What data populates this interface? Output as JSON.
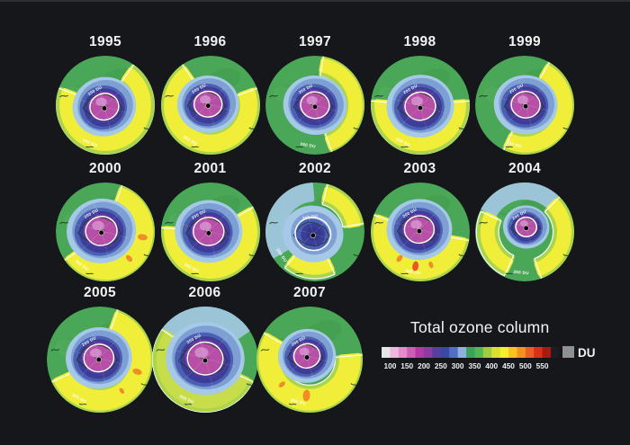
{
  "figure": {
    "background": "#15171a"
  },
  "legend": {
    "title": "Total ozone column",
    "unit": "DU",
    "ticks": [
      "100",
      "150",
      "200",
      "250",
      "300",
      "350",
      "400",
      "450",
      "500",
      "550"
    ],
    "segments": [
      "#e8e5ea",
      "#ecb8dc",
      "#de8fca",
      "#cb5fb6",
      "#b33aa0",
      "#8e3aa0",
      "#553ea4",
      "#3c47a6",
      "#5270c0",
      "#8fafdc",
      "#3da05c",
      "#58b54f",
      "#a2cc3e",
      "#d8e032",
      "#f4ee2c",
      "#f6c322",
      "#f4921f",
      "#e95f23",
      "#da2f1e",
      "#a81b15"
    ],
    "overflow_color": "#1b1d20",
    "missing_color": "#8e9092"
  },
  "chart_data": {
    "type": "heatmap",
    "title": "Total ozone column",
    "unit": "DU",
    "legend_position": "bottom-right",
    "colorbar": {
      "range": [
        75,
        575
      ],
      "segment_du": 25,
      "tick_values": [
        100,
        150,
        200,
        250,
        300,
        350,
        400,
        450,
        500,
        550
      ]
    },
    "categories": [
      "1995",
      "1996",
      "1997",
      "1998",
      "1999",
      "2000",
      "2001",
      "2002",
      "2003",
      "2004",
      "2005",
      "2006",
      "2007"
    ],
    "palette": {
      "disc": "#4aa757",
      "disc_dark": "#419b4e",
      "disc_light": "#58b45f",
      "fringe": "#abd54d",
      "yellow": "#f1ee39",
      "orange": "#ef8e28",
      "red_orange": "#e8562a",
      "pale_blue": "#a5c9e6",
      "light_blue": "#7e9fd3",
      "blue": "#4c5fb2",
      "navy": "#3a3e96",
      "indigo": "#4d3a9c",
      "purple": "#7c3da3",
      "magenta": "#b84fa7",
      "pink": "#d18cc9",
      "contour": "#ffffff",
      "coast": "#173822",
      "text": "#f2f2f2"
    },
    "maps": [
      {
        "year": "1995",
        "row": 0,
        "col": 0,
        "hole": {
          "type": "magenta",
          "size": 0.33,
          "dx": -0.02,
          "dy": 0.03
        },
        "bands": [
          {
            "a0": -55,
            "a1": 200,
            "ro": 0.88,
            "ri": 0.66
          }
        ],
        "spots": [],
        "pale": null,
        "labels": {
          "inner": "200 DU",
          "inner_angle": -120,
          "outer": "350 DU",
          "outer_angle": 112
        }
      },
      {
        "year": "1996",
        "row": 0,
        "col": 1,
        "hole": {
          "type": "magenta",
          "size": 0.32,
          "dx": -0.05,
          "dy": -0.02
        },
        "bands": [
          {
            "a0": -20,
            "a1": 235,
            "ro": 0.9,
            "ri": 0.64
          }
        ],
        "spots": [],
        "pale": null,
        "labels": {
          "inner": "200 DU",
          "inner_angle": -120,
          "outer": "350 DU",
          "outer_angle": 120
        }
      },
      {
        "year": "1997",
        "row": 0,
        "col": 2,
        "hole": {
          "type": "magenta",
          "size": 0.33,
          "dx": 0,
          "dy": 0
        },
        "bands": [
          {
            "a0": -80,
            "a1": 70,
            "ro": 0.92,
            "ri": 0.72
          }
        ],
        "spots": [],
        "pale": null,
        "labels": {
          "inner": "200 DU",
          "inner_angle": -120,
          "outer": "350 DU",
          "outer_angle": 100
        }
      },
      {
        "year": "1998",
        "row": 0,
        "col": 3,
        "hole": {
          "type": "magenta",
          "size": 0.35,
          "dx": 0,
          "dy": 0.02
        },
        "bands": [
          {
            "a0": -5,
            "a1": 185,
            "ro": 0.88,
            "ri": 0.66
          }
        ],
        "spots": [],
        "pale": null,
        "labels": {
          "inner": "200 DU",
          "inner_angle": -120,
          "outer": "350 DU",
          "outer_angle": 115
        }
      },
      {
        "year": "1999",
        "row": 0,
        "col": 4,
        "hole": {
          "type": "magenta",
          "size": 0.33,
          "dx": 0.02,
          "dy": -0.01
        },
        "bands": [
          {
            "a0": -60,
            "a1": 115,
            "ro": 0.9,
            "ri": 0.68
          }
        ],
        "spots": [],
        "pale": null,
        "labels": {
          "inner": "200 DU",
          "inner_angle": -120,
          "outer": "350 DU",
          "outer_angle": 105
        }
      },
      {
        "year": "2000",
        "row": 1,
        "col": 0,
        "hole": {
          "type": "magenta",
          "size": 0.36,
          "dx": -0.08,
          "dy": -0.02
        },
        "bands": [
          {
            "a0": -70,
            "a1": 145,
            "ro": 0.92,
            "ri": 0.62
          }
        ],
        "spots": [
          {
            "a": 8,
            "d": 0.76,
            "r": 0.1
          },
          {
            "a": 48,
            "d": 0.72,
            "r": 0.08
          }
        ],
        "pale": null,
        "labels": {
          "inner": "200 DU",
          "inner_angle": -120,
          "outer": "350 DU",
          "outer_angle": 125
        }
      },
      {
        "year": "2001",
        "row": 1,
        "col": 1,
        "hole": {
          "type": "magenta",
          "size": 0.35,
          "dx": -0.04,
          "dy": -0.01
        },
        "bands": [
          {
            "a0": -30,
            "a1": 185,
            "ro": 0.9,
            "ri": 0.64
          }
        ],
        "spots": [],
        "pale": null,
        "labels": {
          "inner": "200 DU",
          "inner_angle": -120,
          "outer": "350 DU",
          "outer_angle": 118
        }
      },
      {
        "year": "2002",
        "row": 1,
        "col": 2,
        "hole": {
          "type": "blue",
          "size": 0.3,
          "dx": -0.04,
          "dy": 0.04
        },
        "bands": [
          {
            "a0": -75,
            "a1": -10,
            "ro": 0.9,
            "ri": 0.7
          },
          {
            "a0": 65,
            "a1": 130,
            "ro": 0.82,
            "ri": 0.6
          }
        ],
        "spots": [],
        "pale": {
          "a0": 150,
          "a1": 265,
          "ro": 0.98,
          "ri": 0.66
        },
        "labels": {
          "inner": "300 DU",
          "inner_angle": -100,
          "outer": "350 DU",
          "outer_angle": 145
        }
      },
      {
        "year": "2003",
        "row": 1,
        "col": 3,
        "hole": {
          "type": "magenta",
          "size": 0.34,
          "dx": -0.02,
          "dy": -0.05
        },
        "bands": [
          {
            "a0": 10,
            "a1": 200,
            "ro": 0.9,
            "ri": 0.6
          }
        ],
        "spots": [
          {
            "a": 72,
            "d": 0.7,
            "r": 0.07,
            "color": "#ef8e28"
          },
          {
            "a": 98,
            "d": 0.7,
            "r": 0.1,
            "color": "#e8562a"
          },
          {
            "a": 128,
            "d": 0.68,
            "r": 0.08,
            "color": "#ef8e28"
          }
        ],
        "pale": null,
        "labels": {
          "inner": "200 DU",
          "inner_angle": -120,
          "outer": "300 DU",
          "outer_angle": 100
        }
      },
      {
        "year": "2004",
        "row": 1,
        "col": 4,
        "hole": {
          "type": "magenta",
          "size": 0.24,
          "dx": 0.03,
          "dy": -0.1
        },
        "bands": [
          {
            "a0": -45,
            "a1": 70,
            "ro": 0.9,
            "ri": 0.7
          },
          {
            "a0": 115,
            "a1": 205,
            "ro": 0.85,
            "ri": 0.65
          }
        ],
        "spots": [],
        "pale": {
          "a0": -150,
          "a1": -25,
          "ro": 0.98,
          "ri": 0.7
        },
        "labels": {
          "inner": "200 DU",
          "inner_angle": -120,
          "outer": "350 DU",
          "outer_angle": 95
        }
      },
      {
        "year": "2005",
        "row": 2,
        "col": 0,
        "hole": {
          "type": "magenta",
          "size": 0.32,
          "dx": -0.02,
          "dy": -0.03
        },
        "bands": [
          {
            "a0": -70,
            "a1": 155,
            "ro": 0.92,
            "ri": 0.62
          }
        ],
        "spots": [
          {
            "a": 18,
            "d": 0.74,
            "r": 0.09
          },
          {
            "a": 55,
            "d": 0.72,
            "r": 0.06
          }
        ],
        "pale": null,
        "labels": {
          "inner": "200 DU",
          "inner_angle": -120,
          "outer": "350 DU",
          "outer_angle": 118
        }
      },
      {
        "year": "2006",
        "row": 2,
        "col": 1,
        "hole": {
          "type": "magenta",
          "size": 0.38,
          "dx": 0,
          "dy": -0.02
        },
        "bands": [
          {
            "a0": 25,
            "a1": 215,
            "ro": 0.88,
            "ri": 0.68,
            "color": "#c8dd4a"
          }
        ],
        "spots": [],
        "pale": {
          "a0": -145,
          "a1": -35,
          "ro": 0.98,
          "ri": 0.72
        },
        "labels": {
          "inner": "200 DU",
          "inner_angle": -120,
          "outer": "350 DU",
          "outer_angle": 115
        }
      },
      {
        "year": "2007",
        "row": 2,
        "col": 2,
        "hole": {
          "type": "magenta",
          "size": 0.28,
          "dx": -0.05,
          "dy": -0.07
        },
        "bands": [
          {
            "a0": -5,
            "a1": 210,
            "ro": 0.92,
            "ri": 0.6
          }
        ],
        "spots": [
          {
            "a": 95,
            "d": 0.68,
            "r": 0.11
          },
          {
            "a": 138,
            "d": 0.7,
            "r": 0.07
          }
        ],
        "pale": null,
        "labels": {
          "inner": "200 DU",
          "inner_angle": -120,
          "outer": "350 DU",
          "outer_angle": 105
        }
      }
    ]
  }
}
